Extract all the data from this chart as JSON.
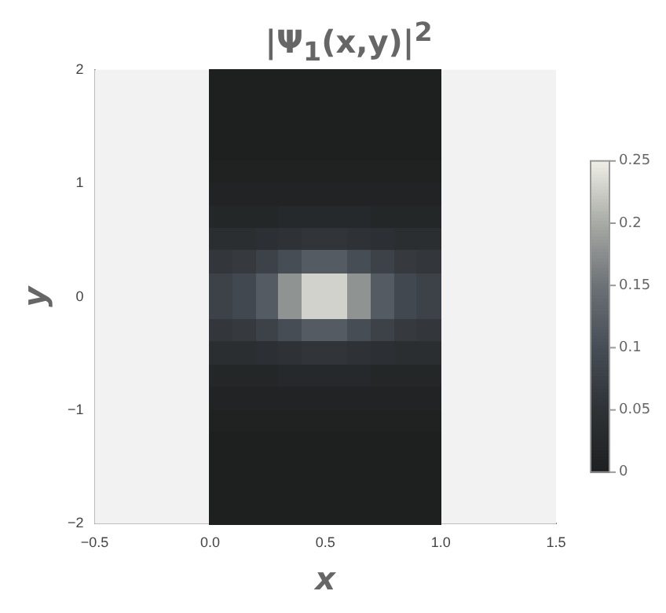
{
  "chart_data": {
    "type": "heatmap",
    "title": "|Ψ$_{1}$(x,y)|$^{2}$",
    "xlabel": "x",
    "ylabel": "y",
    "x": [
      0.05,
      0.15,
      0.25,
      0.35,
      0.45,
      0.55,
      0.65,
      0.75,
      0.85,
      0.95
    ],
    "cells": [
      [
        0,
        0,
        0,
        0,
        0,
        0,
        0,
        0,
        0,
        0
      ],
      [
        0,
        0,
        0,
        0,
        0,
        0,
        0,
        0,
        0,
        0
      ],
      [
        0,
        0,
        0,
        0,
        0,
        0,
        0,
        0,
        0,
        0
      ],
      [
        0,
        0,
        0,
        0,
        0,
        0,
        0,
        0,
        0,
        0
      ],
      [
        0.005,
        0.005,
        0.005,
        0.005,
        0.005,
        0.005,
        0.005,
        0.005,
        0.005,
        0.005
      ],
      [
        0.01,
        0.01,
        0.01,
        0.01,
        0.01,
        0.01,
        0.01,
        0.01,
        0.01,
        0.01
      ],
      [
        0.02,
        0.02,
        0.02,
        0.025,
        0.025,
        0.025,
        0.025,
        0.02,
        0.02,
        0.02
      ],
      [
        0.04,
        0.04,
        0.045,
        0.05,
        0.055,
        0.055,
        0.05,
        0.045,
        0.04,
        0.04
      ],
      [
        0.06,
        0.065,
        0.08,
        0.1,
        0.12,
        0.12,
        0.1,
        0.08,
        0.065,
        0.06
      ],
      [
        0.08,
        0.09,
        0.12,
        0.18,
        0.23,
        0.23,
        0.18,
        0.12,
        0.09,
        0.08
      ],
      [
        0.08,
        0.09,
        0.12,
        0.18,
        0.23,
        0.23,
        0.18,
        0.12,
        0.09,
        0.08
      ],
      [
        0.06,
        0.065,
        0.08,
        0.1,
        0.12,
        0.12,
        0.1,
        0.08,
        0.065,
        0.06
      ],
      [
        0.04,
        0.04,
        0.045,
        0.05,
        0.055,
        0.055,
        0.05,
        0.045,
        0.04,
        0.04
      ],
      [
        0.02,
        0.02,
        0.02,
        0.025,
        0.025,
        0.025,
        0.025,
        0.02,
        0.02,
        0.02
      ],
      [
        0.01,
        0.01,
        0.01,
        0.01,
        0.01,
        0.01,
        0.01,
        0.01,
        0.01,
        0.01
      ],
      [
        0.005,
        0.005,
        0.005,
        0.005,
        0.005,
        0.005,
        0.005,
        0.005,
        0.005,
        0.005
      ],
      [
        0,
        0,
        0,
        0,
        0,
        0,
        0,
        0,
        0,
        0
      ],
      [
        0,
        0,
        0,
        0,
        0,
        0,
        0,
        0,
        0,
        0
      ],
      [
        0,
        0,
        0,
        0,
        0,
        0,
        0,
        0,
        0,
        0
      ],
      [
        0,
        0,
        0,
        0,
        0,
        0,
        0,
        0,
        0,
        0
      ]
    ],
    "xlim": [
      -0.5,
      1.5
    ],
    "xticks": [
      {
        "value": -0.5,
        "label": "−0.5"
      },
      {
        "value": 0,
        "label": "0.0"
      },
      {
        "value": 0.5,
        "label": "0.5"
      },
      {
        "value": 1,
        "label": "1.0"
      },
      {
        "value": 1.5,
        "label": "1.5"
      }
    ],
    "ylim": [
      -2,
      2
    ],
    "yticks": [
      {
        "value": -2,
        "label": "−2"
      },
      {
        "value": -1,
        "label": "−1"
      },
      0,
      1,
      2
    ],
    "clim": [
      0,
      0.25
    ],
    "cticks": [
      0,
      0.05,
      0.1,
      0.15,
      0.2,
      0.25
    ],
    "grid": false
  }
}
